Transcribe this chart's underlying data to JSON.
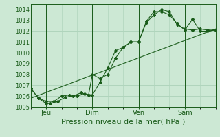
{
  "xlabel": "Pression niveau de la mer( hPa )",
  "bg_color": "#cce8d4",
  "grid_color": "#b0d4bc",
  "line_color": "#1a5c1a",
  "ylim": [
    1005,
    1014.5
  ],
  "yticks": [
    1005,
    1006,
    1007,
    1008,
    1009,
    1010,
    1011,
    1012,
    1013,
    1014
  ],
  "xlim": [
    0,
    96
  ],
  "xtick_positions": [
    8,
    32,
    56,
    80
  ],
  "xtick_labels": [
    "Jeu",
    "Dim",
    "Ven",
    "Sam"
  ],
  "vline_positions": [
    8,
    32,
    56,
    80
  ],
  "series1_x": [
    0,
    4,
    8,
    10,
    14,
    18,
    22,
    26,
    30,
    32,
    36,
    40,
    44,
    48,
    52,
    56,
    60,
    64,
    68,
    72,
    76,
    80,
    84,
    88,
    92,
    96
  ],
  "series1_y": [
    1006.7,
    1005.8,
    1005.3,
    1005.3,
    1005.5,
    1005.9,
    1006.0,
    1006.3,
    1006.1,
    1008.0,
    1007.6,
    1008.0,
    1009.5,
    1010.5,
    1011.0,
    1011.0,
    1012.9,
    1013.8,
    1013.8,
    1013.5,
    1012.7,
    1012.1,
    1013.1,
    1012.0,
    1012.0,
    1012.1
  ],
  "series2_x": [
    0,
    4,
    8,
    12,
    16,
    20,
    24,
    28,
    32,
    36,
    40,
    44,
    48,
    52,
    56,
    60,
    64,
    68,
    72,
    76,
    80,
    84,
    88,
    92,
    96
  ],
  "series2_y": [
    1006.7,
    1005.8,
    1005.5,
    1005.5,
    1006.0,
    1006.1,
    1006.0,
    1006.2,
    1006.1,
    1007.3,
    1008.6,
    1010.2,
    1010.5,
    1011.0,
    1011.0,
    1012.8,
    1013.5,
    1014.0,
    1013.8,
    1012.6,
    1012.2,
    1012.1,
    1012.2,
    1012.1,
    1012.1
  ],
  "trend_x": [
    0,
    96
  ],
  "trend_y": [
    1005.8,
    1012.2
  ],
  "ytick_fontsize": 6,
  "xtick_fontsize": 7,
  "xlabel_fontsize": 8
}
